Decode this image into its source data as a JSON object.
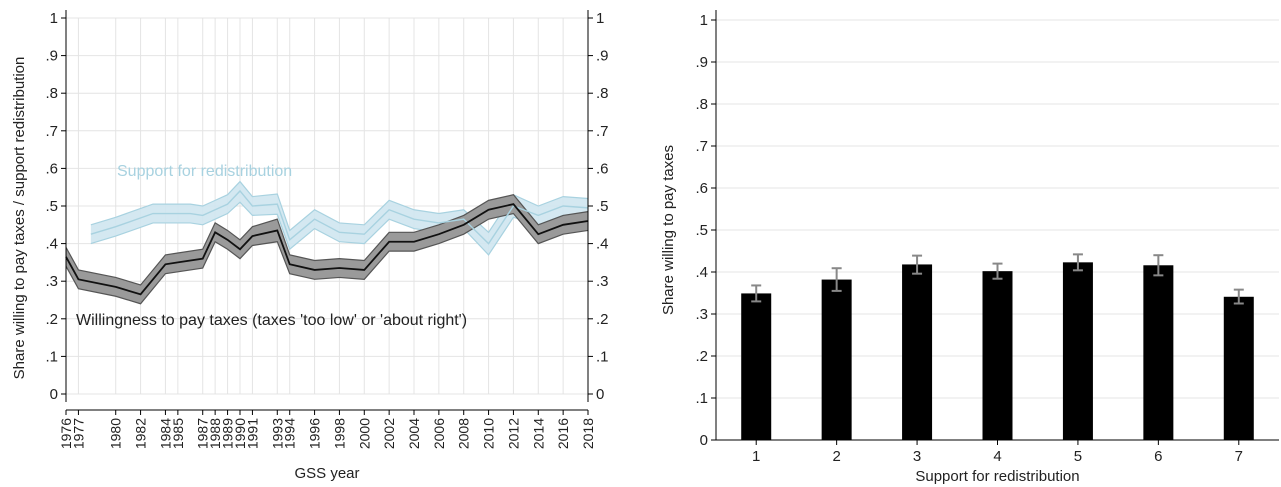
{
  "chart_data": [
    {
      "type": "line",
      "xlabel": "GSS year",
      "ylabel": "Share willing to pay taxes / support redistribution",
      "ylim": [
        0,
        1
      ],
      "xlim": [
        1976,
        2018
      ],
      "y_ticks": [
        "0",
        ".1",
        ".2",
        ".3",
        ".4",
        ".5",
        ".6",
        ".7",
        ".8",
        ".9",
        "1"
      ],
      "y_ticks_left": [
        "0",
        ".1",
        ".2",
        ".3",
        ".4",
        ".5",
        ".6",
        ".7",
        ".8",
        ".9",
        "1"
      ],
      "y_ticks_right": [
        "0",
        ".1",
        ".2",
        ".3",
        ".4",
        ".5",
        ".6",
        ".7",
        ".8",
        ".9",
        "1"
      ],
      "x_ticks": [
        1976,
        1977,
        1980,
        1982,
        1984,
        1985,
        1987,
        1988,
        1989,
        1990,
        1991,
        1993,
        1994,
        1996,
        1998,
        2000,
        2002,
        2004,
        2006,
        2008,
        2010,
        2012,
        2014,
        2016,
        2018
      ],
      "grid": true,
      "series": [
        {
          "name": "Support for redistribution",
          "color": "#a8d2e0",
          "x": [
            1978,
            1980,
            1983,
            1984,
            1986,
            1987,
            1988,
            1989,
            1990,
            1991,
            1993,
            1994,
            1996,
            1998,
            2000,
            2002,
            2004,
            2006,
            2008,
            2010,
            2012,
            2014,
            2016,
            2018
          ],
          "y": [
            0.425,
            0.445,
            0.48,
            0.48,
            0.48,
            0.475,
            0.49,
            0.505,
            0.54,
            0.5,
            0.505,
            0.41,
            0.465,
            0.43,
            0.425,
            0.49,
            0.465,
            0.455,
            0.465,
            0.4,
            0.5,
            0.475,
            0.5,
            0.495
          ],
          "lower": [
            0.4,
            0.42,
            0.455,
            0.455,
            0.455,
            0.45,
            0.465,
            0.48,
            0.51,
            0.475,
            0.478,
            0.385,
            0.44,
            0.405,
            0.4,
            0.465,
            0.44,
            0.43,
            0.44,
            0.37,
            0.47,
            0.45,
            0.475,
            0.47
          ],
          "upper": [
            0.45,
            0.47,
            0.505,
            0.505,
            0.505,
            0.5,
            0.515,
            0.53,
            0.565,
            0.525,
            0.532,
            0.435,
            0.49,
            0.455,
            0.45,
            0.515,
            0.49,
            0.48,
            0.49,
            0.43,
            0.53,
            0.5,
            0.525,
            0.52
          ]
        },
        {
          "name": "Willingness to pay taxes (taxes 'too low' or 'about right')",
          "color": "#111111",
          "band_color": "#8a8a8a",
          "x": [
            1976,
            1977,
            1980,
            1982,
            1984,
            1985,
            1987,
            1988,
            1989,
            1990,
            1991,
            1993,
            1994,
            1996,
            1998,
            2000,
            2002,
            2004,
            2006,
            2008,
            2010,
            2012,
            2014,
            2016,
            2018
          ],
          "y": [
            0.365,
            0.305,
            0.285,
            0.265,
            0.345,
            0.35,
            0.36,
            0.43,
            0.41,
            0.385,
            0.42,
            0.435,
            0.345,
            0.33,
            0.335,
            0.33,
            0.405,
            0.405,
            0.425,
            0.45,
            0.49,
            0.505,
            0.425,
            0.45,
            0.46
          ],
          "lower": [
            0.34,
            0.28,
            0.26,
            0.24,
            0.32,
            0.325,
            0.335,
            0.405,
            0.385,
            0.36,
            0.395,
            0.405,
            0.32,
            0.305,
            0.31,
            0.305,
            0.38,
            0.38,
            0.4,
            0.425,
            0.465,
            0.48,
            0.4,
            0.425,
            0.435
          ],
          "upper": [
            0.39,
            0.33,
            0.31,
            0.29,
            0.37,
            0.375,
            0.385,
            0.455,
            0.435,
            0.41,
            0.445,
            0.465,
            0.37,
            0.355,
            0.36,
            0.355,
            0.43,
            0.43,
            0.45,
            0.475,
            0.515,
            0.53,
            0.45,
            0.475,
            0.485
          ]
        }
      ]
    },
    {
      "type": "bar",
      "xlabel": "Support for redistribution",
      "ylabel": "Share willing to pay taxes",
      "ylim": [
        0,
        1
      ],
      "y_ticks": [
        "0",
        ".1",
        ".2",
        ".3",
        ".4",
        ".5",
        ".6",
        ".7",
        ".8",
        ".9",
        "1"
      ],
      "categories": [
        "1",
        "2",
        "3",
        "4",
        "5",
        "6",
        "7"
      ],
      "values": [
        0.349,
        0.382,
        0.418,
        0.402,
        0.423,
        0.416,
        0.341
      ],
      "err_low": [
        0.33,
        0.355,
        0.396,
        0.384,
        0.404,
        0.392,
        0.325
      ],
      "err_high": [
        0.368,
        0.409,
        0.439,
        0.42,
        0.442,
        0.44,
        0.358
      ],
      "bar_color": "#000000",
      "error_color": "#888888",
      "grid": true
    }
  ]
}
